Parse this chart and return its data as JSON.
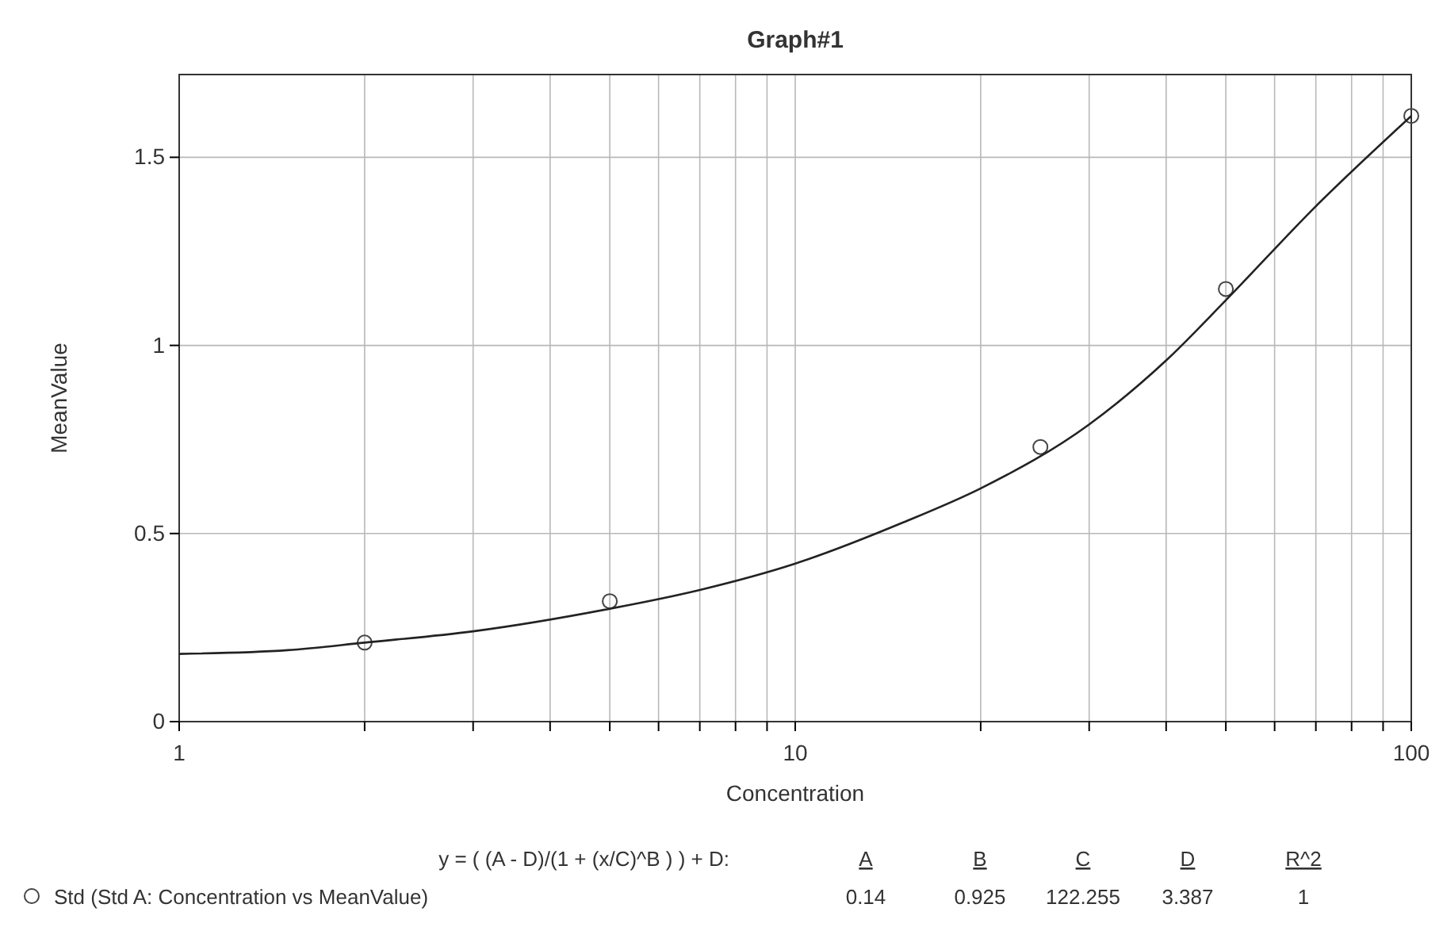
{
  "chart_data": {
    "type": "scatter",
    "title": "Graph#1",
    "xlabel": "Concentration",
    "ylabel": "MeanValue",
    "log": "x",
    "grid": true,
    "legend": "bottom",
    "marker": "circle",
    "xlim": [
      1,
      100
    ],
    "ylim": [
      0,
      1.72
    ],
    "xticks": [
      1,
      {
        "value": 2,
        "label": null
      },
      {
        "value": 3,
        "label": null
      },
      {
        "value": 4,
        "label": null
      },
      {
        "value": 5,
        "label": null
      },
      {
        "value": 6,
        "label": null
      },
      {
        "value": 7,
        "label": null
      },
      {
        "value": 8,
        "label": null
      },
      {
        "value": 9,
        "label": null
      },
      10,
      {
        "value": 20,
        "label": null
      },
      {
        "value": 30,
        "label": null
      },
      {
        "value": 40,
        "label": null
      },
      {
        "value": 50,
        "label": null
      },
      {
        "value": 60,
        "label": null
      },
      {
        "value": 70,
        "label": null
      },
      {
        "value": 80,
        "label": null
      },
      {
        "value": 90,
        "label": null
      },
      100
    ],
    "yticks": [
      0,
      0.5,
      1,
      1.5
    ],
    "series": [
      {
        "name": "Std (Std A: Concentration vs MeanValue)",
        "type": "scatter",
        "color": "#444444",
        "x": [
          2,
          5,
          25,
          50,
          100
        ],
        "values": [
          0.21,
          0.32,
          0.73,
          1.15,
          1.61
        ]
      },
      {
        "type": "line",
        "color": "#222222",
        "marker": "none",
        "x": [
          1,
          1.5,
          2,
          3,
          5,
          7,
          10,
          15,
          20,
          30,
          40,
          50,
          70,
          100
        ],
        "values": [
          0.18,
          0.19,
          0.21,
          0.24,
          0.3,
          0.35,
          0.42,
          0.53,
          0.62,
          0.79,
          0.96,
          1.12,
          1.37,
          1.61
        ]
      }
    ],
    "annotations": [
      "y = ( (A - D)/(1 + (x/C)^B ) ) + D:",
      "A",
      "B",
      "C",
      "D",
      "R^2",
      "0.14",
      "0.925",
      "122.255",
      "3.387",
      "1"
    ]
  }
}
